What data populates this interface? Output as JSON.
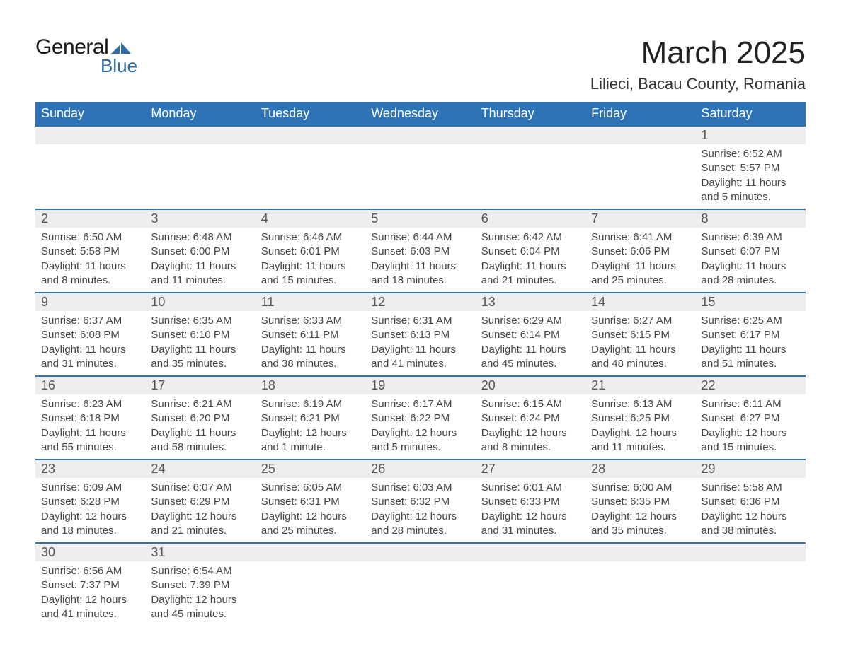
{
  "logo": {
    "text1": "General",
    "text2": "Blue",
    "flag_color": "#2d6ca2"
  },
  "title": "March 2025",
  "location": "Lilieci, Bacau County, Romania",
  "colors": {
    "header_bg": "#2d73b5",
    "header_text": "#ffffff",
    "daynum_bg": "#eeeeee",
    "border": "#2d73b5",
    "text": "#444444"
  },
  "day_headers": [
    "Sunday",
    "Monday",
    "Tuesday",
    "Wednesday",
    "Thursday",
    "Friday",
    "Saturday"
  ],
  "weeks": [
    [
      null,
      null,
      null,
      null,
      null,
      null,
      {
        "n": "1",
        "sr": "Sunrise: 6:52 AM",
        "ss": "Sunset: 5:57 PM",
        "dl": "Daylight: 11 hours and 5 minutes."
      }
    ],
    [
      {
        "n": "2",
        "sr": "Sunrise: 6:50 AM",
        "ss": "Sunset: 5:58 PM",
        "dl": "Daylight: 11 hours and 8 minutes."
      },
      {
        "n": "3",
        "sr": "Sunrise: 6:48 AM",
        "ss": "Sunset: 6:00 PM",
        "dl": "Daylight: 11 hours and 11 minutes."
      },
      {
        "n": "4",
        "sr": "Sunrise: 6:46 AM",
        "ss": "Sunset: 6:01 PM",
        "dl": "Daylight: 11 hours and 15 minutes."
      },
      {
        "n": "5",
        "sr": "Sunrise: 6:44 AM",
        "ss": "Sunset: 6:03 PM",
        "dl": "Daylight: 11 hours and 18 minutes."
      },
      {
        "n": "6",
        "sr": "Sunrise: 6:42 AM",
        "ss": "Sunset: 6:04 PM",
        "dl": "Daylight: 11 hours and 21 minutes."
      },
      {
        "n": "7",
        "sr": "Sunrise: 6:41 AM",
        "ss": "Sunset: 6:06 PM",
        "dl": "Daylight: 11 hours and 25 minutes."
      },
      {
        "n": "8",
        "sr": "Sunrise: 6:39 AM",
        "ss": "Sunset: 6:07 PM",
        "dl": "Daylight: 11 hours and 28 minutes."
      }
    ],
    [
      {
        "n": "9",
        "sr": "Sunrise: 6:37 AM",
        "ss": "Sunset: 6:08 PM",
        "dl": "Daylight: 11 hours and 31 minutes."
      },
      {
        "n": "10",
        "sr": "Sunrise: 6:35 AM",
        "ss": "Sunset: 6:10 PM",
        "dl": "Daylight: 11 hours and 35 minutes."
      },
      {
        "n": "11",
        "sr": "Sunrise: 6:33 AM",
        "ss": "Sunset: 6:11 PM",
        "dl": "Daylight: 11 hours and 38 minutes."
      },
      {
        "n": "12",
        "sr": "Sunrise: 6:31 AM",
        "ss": "Sunset: 6:13 PM",
        "dl": "Daylight: 11 hours and 41 minutes."
      },
      {
        "n": "13",
        "sr": "Sunrise: 6:29 AM",
        "ss": "Sunset: 6:14 PM",
        "dl": "Daylight: 11 hours and 45 minutes."
      },
      {
        "n": "14",
        "sr": "Sunrise: 6:27 AM",
        "ss": "Sunset: 6:15 PM",
        "dl": "Daylight: 11 hours and 48 minutes."
      },
      {
        "n": "15",
        "sr": "Sunrise: 6:25 AM",
        "ss": "Sunset: 6:17 PM",
        "dl": "Daylight: 11 hours and 51 minutes."
      }
    ],
    [
      {
        "n": "16",
        "sr": "Sunrise: 6:23 AM",
        "ss": "Sunset: 6:18 PM",
        "dl": "Daylight: 11 hours and 55 minutes."
      },
      {
        "n": "17",
        "sr": "Sunrise: 6:21 AM",
        "ss": "Sunset: 6:20 PM",
        "dl": "Daylight: 11 hours and 58 minutes."
      },
      {
        "n": "18",
        "sr": "Sunrise: 6:19 AM",
        "ss": "Sunset: 6:21 PM",
        "dl": "Daylight: 12 hours and 1 minute."
      },
      {
        "n": "19",
        "sr": "Sunrise: 6:17 AM",
        "ss": "Sunset: 6:22 PM",
        "dl": "Daylight: 12 hours and 5 minutes."
      },
      {
        "n": "20",
        "sr": "Sunrise: 6:15 AM",
        "ss": "Sunset: 6:24 PM",
        "dl": "Daylight: 12 hours and 8 minutes."
      },
      {
        "n": "21",
        "sr": "Sunrise: 6:13 AM",
        "ss": "Sunset: 6:25 PM",
        "dl": "Daylight: 12 hours and 11 minutes."
      },
      {
        "n": "22",
        "sr": "Sunrise: 6:11 AM",
        "ss": "Sunset: 6:27 PM",
        "dl": "Daylight: 12 hours and 15 minutes."
      }
    ],
    [
      {
        "n": "23",
        "sr": "Sunrise: 6:09 AM",
        "ss": "Sunset: 6:28 PM",
        "dl": "Daylight: 12 hours and 18 minutes."
      },
      {
        "n": "24",
        "sr": "Sunrise: 6:07 AM",
        "ss": "Sunset: 6:29 PM",
        "dl": "Daylight: 12 hours and 21 minutes."
      },
      {
        "n": "25",
        "sr": "Sunrise: 6:05 AM",
        "ss": "Sunset: 6:31 PM",
        "dl": "Daylight: 12 hours and 25 minutes."
      },
      {
        "n": "26",
        "sr": "Sunrise: 6:03 AM",
        "ss": "Sunset: 6:32 PM",
        "dl": "Daylight: 12 hours and 28 minutes."
      },
      {
        "n": "27",
        "sr": "Sunrise: 6:01 AM",
        "ss": "Sunset: 6:33 PM",
        "dl": "Daylight: 12 hours and 31 minutes."
      },
      {
        "n": "28",
        "sr": "Sunrise: 6:00 AM",
        "ss": "Sunset: 6:35 PM",
        "dl": "Daylight: 12 hours and 35 minutes."
      },
      {
        "n": "29",
        "sr": "Sunrise: 5:58 AM",
        "ss": "Sunset: 6:36 PM",
        "dl": "Daylight: 12 hours and 38 minutes."
      }
    ],
    [
      {
        "n": "30",
        "sr": "Sunrise: 6:56 AM",
        "ss": "Sunset: 7:37 PM",
        "dl": "Daylight: 12 hours and 41 minutes."
      },
      {
        "n": "31",
        "sr": "Sunrise: 6:54 AM",
        "ss": "Sunset: 7:39 PM",
        "dl": "Daylight: 12 hours and 45 minutes."
      },
      null,
      null,
      null,
      null,
      null
    ]
  ]
}
